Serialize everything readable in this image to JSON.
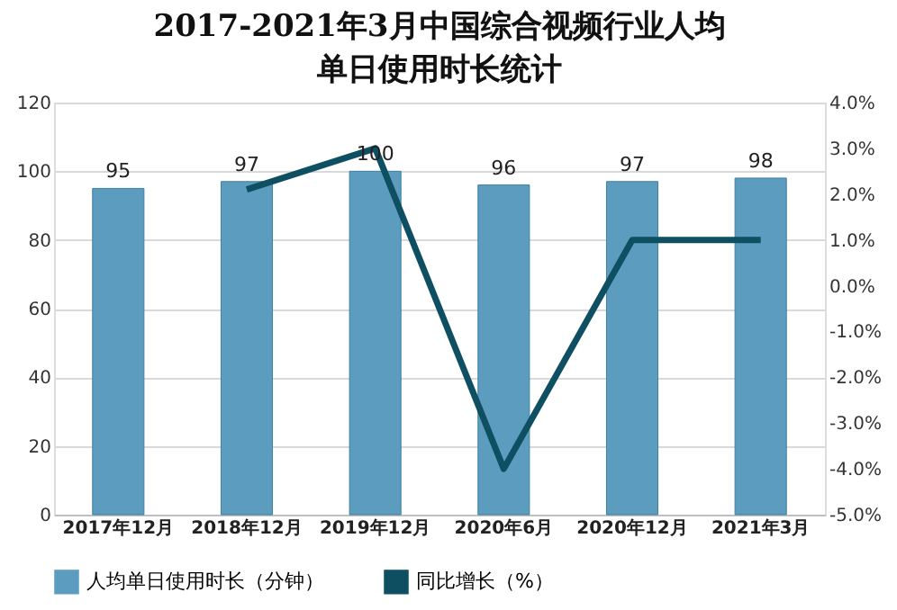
{
  "chart_data": {
    "type": "bar",
    "title": "2017-2021年3月中国综合视频行业人均单日使用时长统计",
    "categories": [
      "2017年12月",
      "2018年12月",
      "2019年12月",
      "2020年6月",
      "2020年12月",
      "2021年3月"
    ],
    "series": [
      {
        "name": "人均单日使用时长（分钟）",
        "color": "#5b9cbf",
        "values": [
          95,
          97,
          100,
          96,
          97,
          98
        ],
        "value_labels": [
          "95",
          "97",
          "100",
          "96",
          "97",
          "98"
        ]
      },
      {
        "name": "同比增长（%）",
        "type": "line",
        "axis": "y2",
        "color": "#0e4f62",
        "values": [
          null,
          2.1,
          3.0,
          -4.0,
          1.0,
          1.0
        ]
      }
    ],
    "line_style": "solid",
    "ylim": [
      0,
      120
    ],
    "yticks": [
      0,
      20,
      40,
      60,
      80,
      100,
      120
    ],
    "y2lim": [
      -5,
      4
    ],
    "y2ticks": [
      {
        "value": -5,
        "label": "-5.0%"
      },
      {
        "value": -4,
        "label": "-4.0%"
      },
      {
        "value": -3,
        "label": "-3.0%"
      },
      {
        "value": -2,
        "label": "-2.0%"
      },
      {
        "value": -1,
        "label": "-1.0%"
      },
      {
        "value": 0,
        "label": "0.0%"
      },
      {
        "value": 1,
        "label": "1.0%"
      },
      {
        "value": 2,
        "label": "2.0%"
      },
      {
        "value": 3,
        "label": "3.0%"
      },
      {
        "value": 4,
        "label": "4.0%"
      }
    ],
    "grid": "y",
    "legend": "bottom",
    "marker": "none"
  }
}
